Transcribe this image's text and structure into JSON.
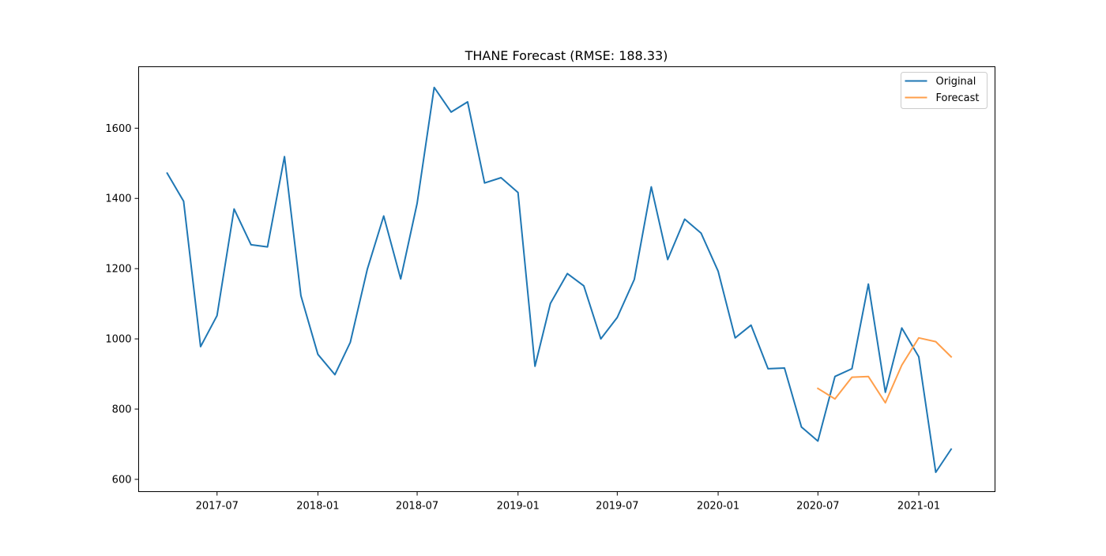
{
  "chart_data": {
    "type": "line",
    "title": "THANE Forecast (RMSE: 188.33)",
    "xlabel": "",
    "ylabel": "",
    "x_ticks": [
      "2017-07",
      "2018-01",
      "2018-07",
      "2019-01",
      "2019-07",
      "2020-01",
      "2020-07",
      "2021-01"
    ],
    "y_ticks": [
      600,
      800,
      1000,
      1200,
      1400,
      1600
    ],
    "ylim": [
      565,
      1775
    ],
    "xlim": [
      "2017-02-08",
      "2021-05-20"
    ],
    "legend_position": "top-right",
    "grid": false,
    "series": [
      {
        "name": "Original",
        "color": "#1f77b4",
        "x": [
          "2017-04",
          "2017-05",
          "2017-06",
          "2017-07",
          "2017-08",
          "2017-09",
          "2017-10",
          "2017-11",
          "2017-12",
          "2018-01",
          "2018-02",
          "2018-03",
          "2018-04",
          "2018-05",
          "2018-06",
          "2018-07",
          "2018-08",
          "2018-09",
          "2018-10",
          "2018-11",
          "2018-12",
          "2019-01",
          "2019-02",
          "2019-03",
          "2019-04",
          "2019-05",
          "2019-06",
          "2019-07",
          "2019-08",
          "2019-09",
          "2019-10",
          "2019-11",
          "2019-12",
          "2020-01",
          "2020-02",
          "2020-03",
          "2020-04",
          "2020-05",
          "2020-06",
          "2020-07",
          "2020-08",
          "2020-09",
          "2020-10",
          "2020-11",
          "2020-12",
          "2021-01",
          "2021-02",
          "2021-03"
        ],
        "values": [
          1472,
          1392,
          978,
          1066,
          1370,
          1268,
          1262,
          1519,
          1123,
          956,
          898,
          990,
          1198,
          1350,
          1171,
          1386,
          1716,
          1646,
          1675,
          1444,
          1459,
          1417,
          922,
          1101,
          1186,
          1151,
          1000,
          1061,
          1169,
          1433,
          1226,
          1341,
          1301,
          1193,
          1003,
          1039,
          915,
          917,
          749,
          709,
          893,
          915,
          1156,
          848,
          1031,
          949,
          620,
          686
        ]
      },
      {
        "name": "Forecast",
        "color": "#ff9f4b",
        "x": [
          "2020-07",
          "2020-08",
          "2020-09",
          "2020-10",
          "2020-11",
          "2020-12",
          "2021-01",
          "2021-02",
          "2021-03"
        ],
        "values": [
          859,
          829,
          891,
          893,
          818,
          925,
          1003,
          992,
          949
        ]
      }
    ]
  }
}
